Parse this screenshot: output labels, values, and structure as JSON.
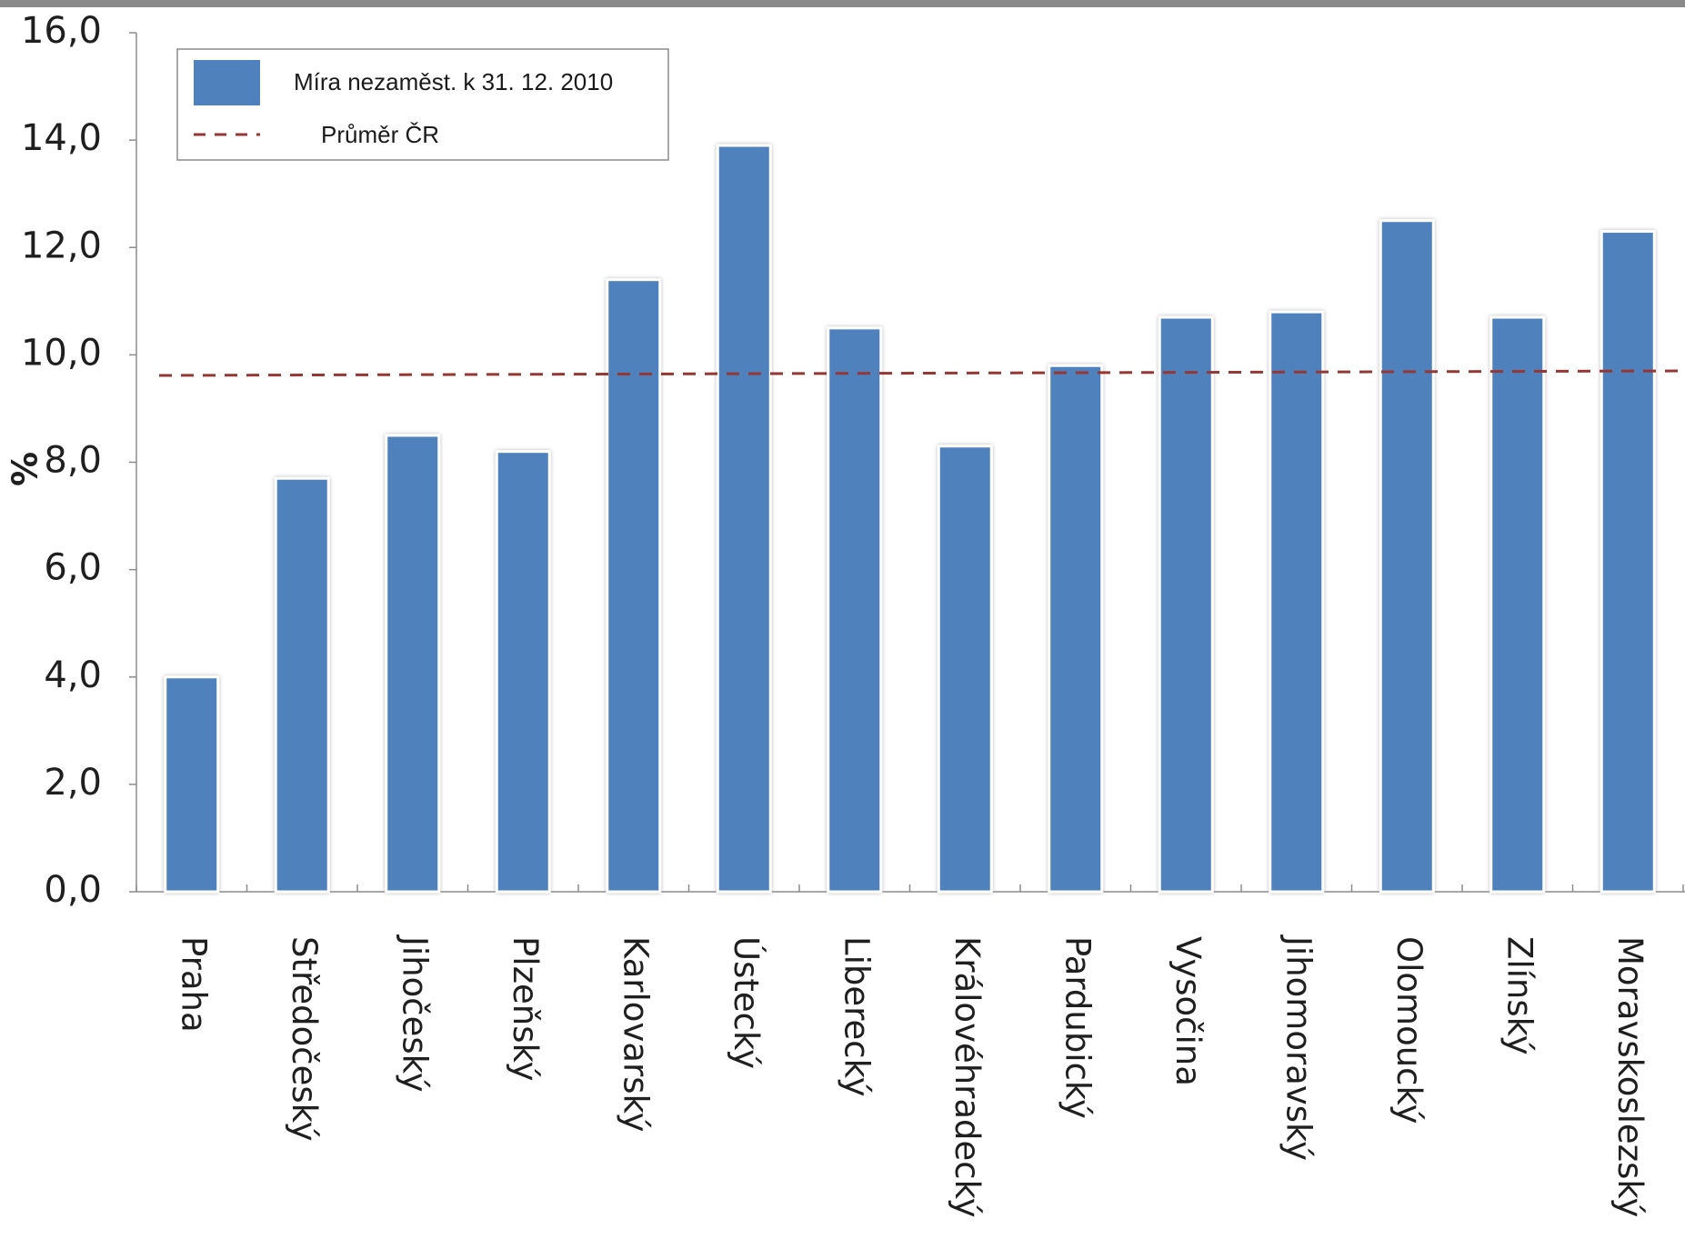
{
  "chart_data": {
    "type": "bar",
    "ylabel": "%",
    "ylim": [
      0,
      16
    ],
    "yticks": [
      "0,0",
      "2,0",
      "4,0",
      "6,0",
      "8,0",
      "10,0",
      "12,0",
      "14,0",
      "16,0"
    ],
    "categories": [
      "Praha",
      "Středočeský",
      "Jihočeský",
      "Plzeňský",
      "Karlovarský",
      "Ústecký",
      "Liberecký",
      "Královéhradecký",
      "Pardubický",
      "Vysočina",
      "Jihomoravský",
      "Olomoucký",
      "Zlínský",
      "Moravskoslezský"
    ],
    "series": [
      {
        "name": "Míra nezaměst. k 31. 12. 2010",
        "values": [
          4.0,
          7.7,
          8.5,
          8.2,
          11.4,
          13.9,
          10.5,
          8.3,
          9.8,
          10.7,
          10.8,
          12.5,
          10.7,
          12.3
        ],
        "color": "#4f81bd"
      }
    ],
    "reference_line": {
      "name": "Průměr ČR",
      "value": 9.6,
      "color": "#953735",
      "style": "dashed"
    },
    "legend": {
      "placement": "top-left"
    },
    "grid": false
  }
}
